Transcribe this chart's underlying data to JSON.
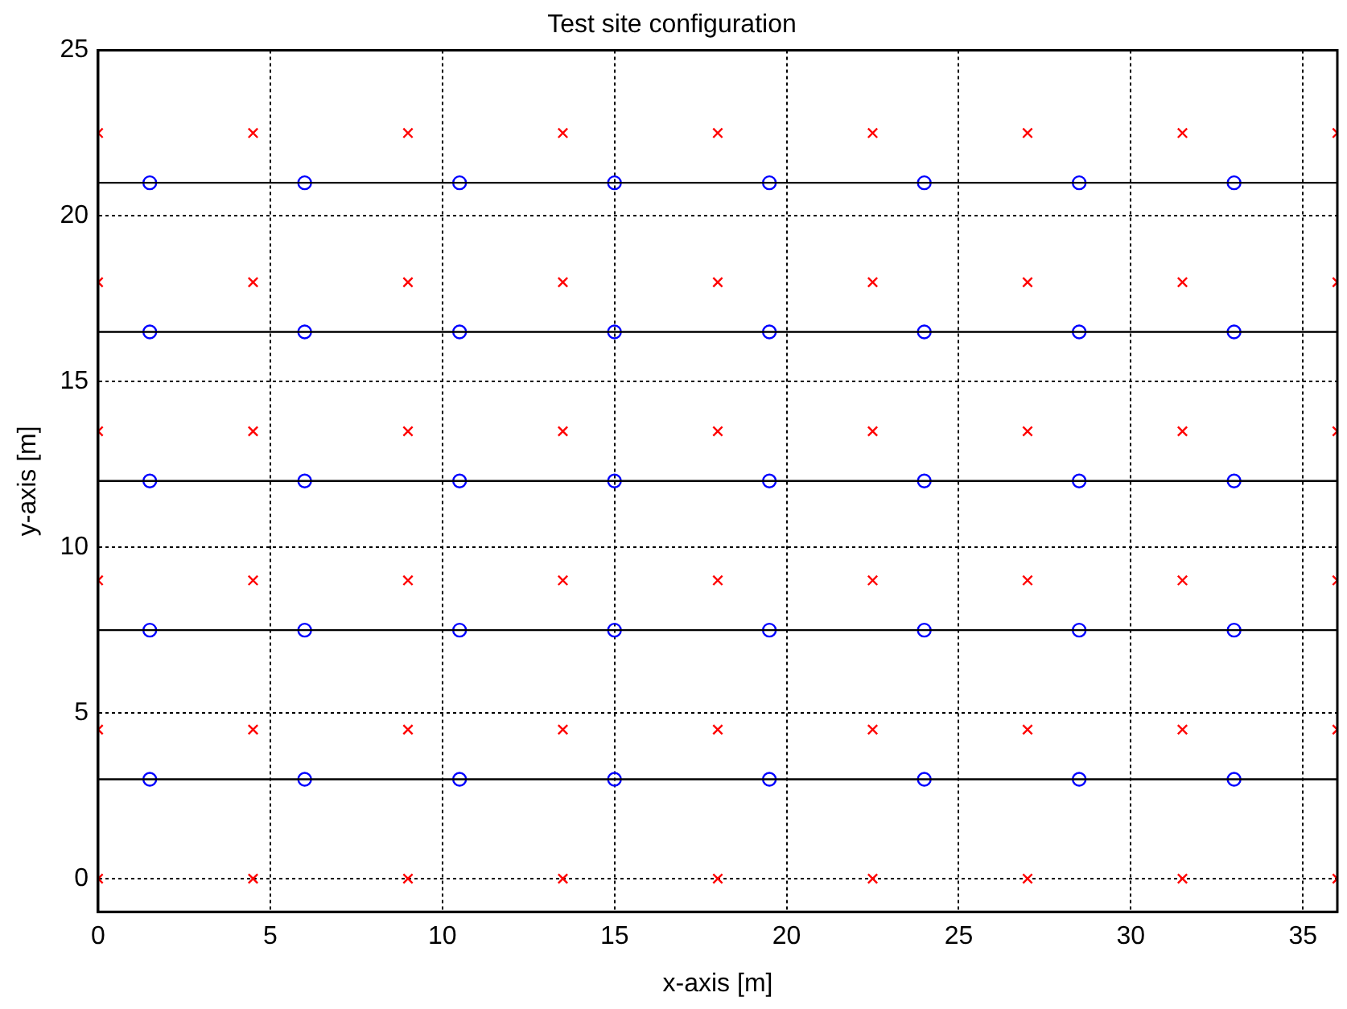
{
  "chart_data": {
    "type": "scatter",
    "title": "Test site configuration",
    "xlabel": "x-axis [m]",
    "ylabel": "y-axis [m]",
    "xlim": [
      0,
      36
    ],
    "ylim": [
      -1,
      25
    ],
    "xticks": [
      0,
      5,
      10,
      15,
      20,
      25,
      30,
      35
    ],
    "yticks": [
      0,
      5,
      10,
      15,
      20,
      25
    ],
    "grid": true,
    "legend": false,
    "series": [
      {
        "marker": "cross",
        "color": "#ff0000",
        "x": [
          0,
          4.5,
          9,
          13.5,
          18,
          22.5,
          27,
          31.5,
          36,
          0,
          4.5,
          9,
          13.5,
          18,
          22.5,
          27,
          31.5,
          36,
          0,
          4.5,
          9,
          13.5,
          18,
          22.5,
          27,
          31.5,
          36,
          0,
          4.5,
          9,
          13.5,
          18,
          22.5,
          27,
          31.5,
          36,
          0,
          4.5,
          9,
          13.5,
          18,
          22.5,
          27,
          31.5,
          36,
          0,
          4.5,
          9,
          13.5,
          18,
          22.5,
          27,
          31.5,
          36
        ],
        "values": [
          0,
          0,
          0,
          0,
          0,
          0,
          0,
          0,
          0,
          4.5,
          4.5,
          4.5,
          4.5,
          4.5,
          4.5,
          4.5,
          4.5,
          4.5,
          9,
          9,
          9,
          9,
          9,
          9,
          9,
          9,
          9,
          13.5,
          13.5,
          13.5,
          13.5,
          13.5,
          13.5,
          13.5,
          13.5,
          13.5,
          18,
          18,
          18,
          18,
          18,
          18,
          18,
          18,
          18,
          22.5,
          22.5,
          22.5,
          22.5,
          22.5,
          22.5,
          22.5,
          22.5,
          22.5
        ]
      },
      {
        "type": "line",
        "marker": "none",
        "color": "#000000",
        "x": [
          0,
          36
        ],
        "values": [
          3,
          3
        ]
      },
      {
        "type": "line",
        "marker": "none",
        "color": "#000000",
        "x": [
          0,
          36
        ],
        "values": [
          7.5,
          7.5
        ]
      },
      {
        "type": "line",
        "marker": "none",
        "color": "#000000",
        "x": [
          0,
          36
        ],
        "values": [
          12,
          12
        ]
      },
      {
        "type": "line",
        "marker": "none",
        "color": "#000000",
        "x": [
          0,
          36
        ],
        "values": [
          16.5,
          16.5
        ]
      },
      {
        "type": "line",
        "marker": "none",
        "color": "#000000",
        "x": [
          0,
          36
        ],
        "values": [
          21,
          21
        ]
      },
      {
        "marker": "circle",
        "color": "#0000ff",
        "x": [
          1.5,
          6,
          10.5,
          15,
          19.5,
          24,
          28.5,
          33,
          1.5,
          6,
          10.5,
          15,
          19.5,
          24,
          28.5,
          33,
          1.5,
          6,
          10.5,
          15,
          19.5,
          24,
          28.5,
          33,
          1.5,
          6,
          10.5,
          15,
          19.5,
          24,
          28.5,
          33,
          1.5,
          6,
          10.5,
          15,
          19.5,
          24,
          28.5,
          33
        ],
        "values": [
          3,
          3,
          3,
          3,
          3,
          3,
          3,
          3,
          7.5,
          7.5,
          7.5,
          7.5,
          7.5,
          7.5,
          7.5,
          7.5,
          12,
          12,
          12,
          12,
          12,
          12,
          12,
          12,
          16.5,
          16.5,
          16.5,
          16.5,
          16.5,
          16.5,
          16.5,
          16.5,
          21,
          21,
          21,
          21,
          21,
          21,
          21,
          21
        ]
      }
    ]
  }
}
